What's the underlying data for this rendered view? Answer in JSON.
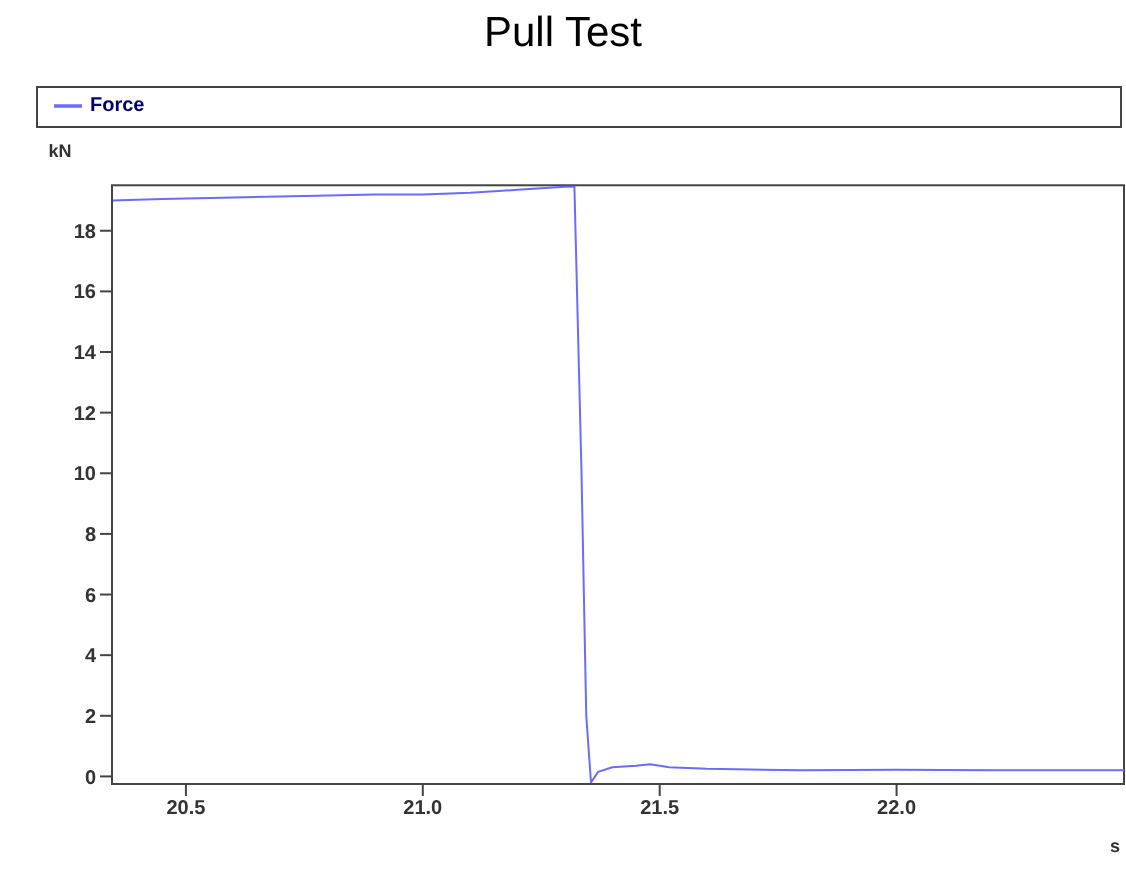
{
  "chart_data": {
    "type": "line",
    "title": "Pull Test",
    "xlabel": "s",
    "ylabel": "kN",
    "series": [
      {
        "name": "Force",
        "color": "#6b6bff",
        "x": [
          20.344,
          20.45,
          20.6,
          20.75,
          20.9,
          21.0,
          21.1,
          21.2,
          21.3,
          21.32,
          21.335,
          21.345,
          21.355,
          21.37,
          21.4,
          21.45,
          21.48,
          21.52,
          21.6,
          21.8,
          22.0,
          22.2,
          22.48
        ],
        "values": [
          19.0,
          19.05,
          19.1,
          19.15,
          19.2,
          19.2,
          19.25,
          19.35,
          19.45,
          19.45,
          10.0,
          2.0,
          -0.2,
          0.15,
          0.3,
          0.35,
          0.4,
          0.3,
          0.25,
          0.2,
          0.22,
          0.2,
          0.2
        ]
      }
    ],
    "xlim": [
      20.344,
      22.48
    ],
    "xticks": [
      {
        "value": 20.5,
        "label": "20.5"
      },
      {
        "value": 21.0,
        "label": "21.0"
      },
      {
        "value": 21.5,
        "label": "21.5"
      },
      {
        "value": 22.0,
        "label": "22.0"
      }
    ],
    "ylim": [
      -0.25,
      19.5
    ],
    "yticks": [
      0,
      2,
      4,
      6,
      8,
      10,
      12,
      14,
      16,
      18
    ],
    "grid": false,
    "legend": "top",
    "marker": "none",
    "line_style": "solid"
  }
}
